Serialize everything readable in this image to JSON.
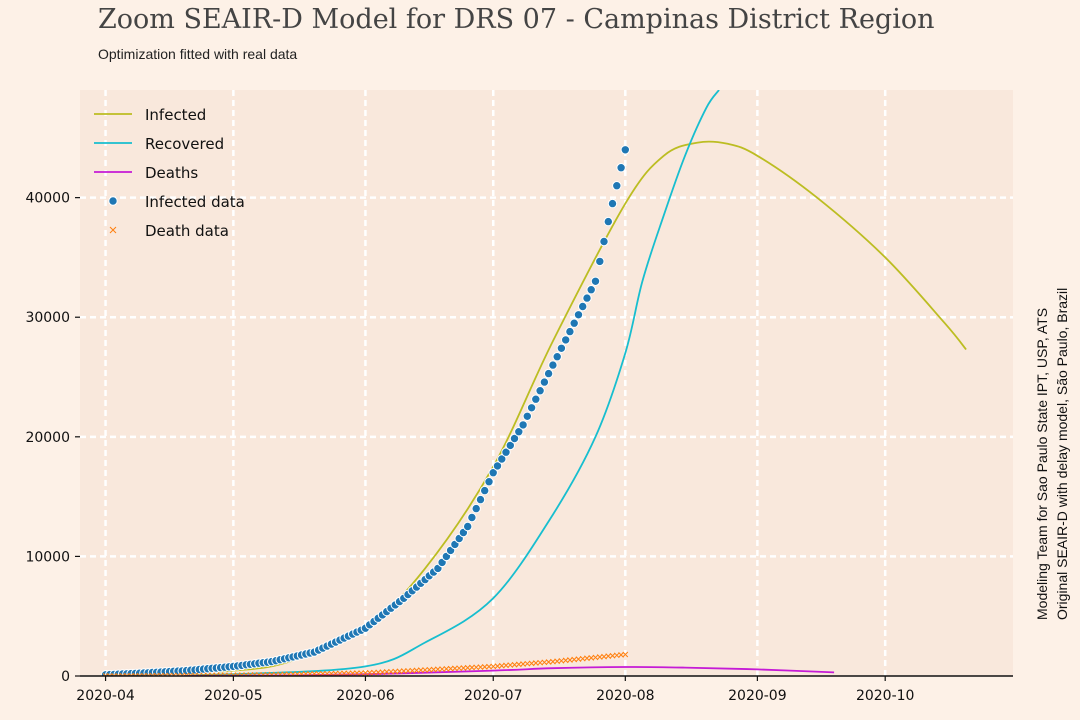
{
  "header": {
    "title": "Zoom SEAIR-D Model for DRS 07 - Campinas District Region",
    "subtitle": "Optimization fitted with real data"
  },
  "side_note": {
    "line1": "Modeling Team for Sao Paulo State IPT, USP, ATS",
    "line2": "Original SEAIR-D with delay model, São Paulo, Brazil"
  },
  "colors": {
    "background": "#fdf1e7",
    "plot_area": "#f9e8dc",
    "grid": "#ffffff",
    "infected": "#bcbd22",
    "recovered": "#17becf",
    "deaths": "#c51bd6",
    "infected_data": "#1f77b4",
    "death_data": "#ff7f0e"
  },
  "chart_data": {
    "type": "line",
    "title": "Zoom SEAIR-D Model for DRS 07 - Campinas District Region",
    "subtitle": "Optimization fitted with real data",
    "xlabel": "",
    "ylabel": "",
    "x_axis_type": "date",
    "xlim": [
      "2020-03-26",
      "2020-10-31"
    ],
    "ylim": [
      0,
      49000
    ],
    "x_ticks": [
      "2020-04",
      "2020-05",
      "2020-06",
      "2020-07",
      "2020-08",
      "2020-09",
      "2020-10"
    ],
    "y_ticks": [
      0,
      10000,
      20000,
      30000,
      40000
    ],
    "grid": true,
    "legend_position": "top-left",
    "series": [
      {
        "name": "Infected",
        "kind": "line",
        "points": [
          [
            "2020-04-01",
            80
          ],
          [
            "2020-05-01",
            450
          ],
          [
            "2020-05-15",
            1300
          ],
          [
            "2020-06-01",
            4000
          ],
          [
            "2020-06-15",
            9000
          ],
          [
            "2020-07-01",
            17500
          ],
          [
            "2020-07-15",
            28000
          ],
          [
            "2020-08-01",
            39500
          ],
          [
            "2020-08-10",
            43500
          ],
          [
            "2020-08-18",
            44600
          ],
          [
            "2020-08-25",
            44500
          ],
          [
            "2020-09-01",
            43500
          ],
          [
            "2020-09-15",
            40000
          ],
          [
            "2020-10-01",
            35000
          ],
          [
            "2020-10-15",
            29500
          ],
          [
            "2020-10-20",
            27300
          ]
        ]
      },
      {
        "name": "Recovered",
        "kind": "line",
        "points": [
          [
            "2020-04-01",
            0
          ],
          [
            "2020-05-01",
            150
          ],
          [
            "2020-06-01",
            800
          ],
          [
            "2020-06-15",
            2800
          ],
          [
            "2020-07-01",
            6500
          ],
          [
            "2020-07-15",
            13500
          ],
          [
            "2020-07-25",
            20000
          ],
          [
            "2020-08-01",
            27000
          ],
          [
            "2020-08-05",
            33000
          ],
          [
            "2020-08-10",
            38500
          ],
          [
            "2020-08-15",
            43500
          ],
          [
            "2020-08-20",
            47500
          ],
          [
            "2020-08-23",
            49000
          ]
        ]
      },
      {
        "name": "Deaths",
        "kind": "line",
        "points": [
          [
            "2020-04-01",
            0
          ],
          [
            "2020-05-01",
            20
          ],
          [
            "2020-06-01",
            150
          ],
          [
            "2020-07-01",
            450
          ],
          [
            "2020-07-15",
            650
          ],
          [
            "2020-08-01",
            750
          ],
          [
            "2020-08-15",
            700
          ],
          [
            "2020-09-01",
            550
          ],
          [
            "2020-09-19",
            300
          ]
        ]
      },
      {
        "name": "Infected data",
        "kind": "scatter",
        "points": [
          [
            "2020-04-01",
            100
          ],
          [
            "2020-04-10",
            250
          ],
          [
            "2020-04-20",
            450
          ],
          [
            "2020-05-01",
            800
          ],
          [
            "2020-05-10",
            1200
          ],
          [
            "2020-05-20",
            2000
          ],
          [
            "2020-06-01",
            4000
          ],
          [
            "2020-06-10",
            6500
          ],
          [
            "2020-06-18",
            9000
          ],
          [
            "2020-06-25",
            12500
          ],
          [
            "2020-07-01",
            17000
          ],
          [
            "2020-07-08",
            21000
          ],
          [
            "2020-07-15",
            26000
          ],
          [
            "2020-07-20",
            29500
          ],
          [
            "2020-07-25",
            33000
          ],
          [
            "2020-07-28",
            38000
          ],
          [
            "2020-08-01",
            44000
          ]
        ]
      },
      {
        "name": "Death data",
        "kind": "scatter",
        "points": [
          [
            "2020-04-01",
            10
          ],
          [
            "2020-05-01",
            60
          ],
          [
            "2020-06-01",
            250
          ],
          [
            "2020-07-01",
            800
          ],
          [
            "2020-07-15",
            1200
          ],
          [
            "2020-08-01",
            1800
          ]
        ]
      }
    ]
  }
}
